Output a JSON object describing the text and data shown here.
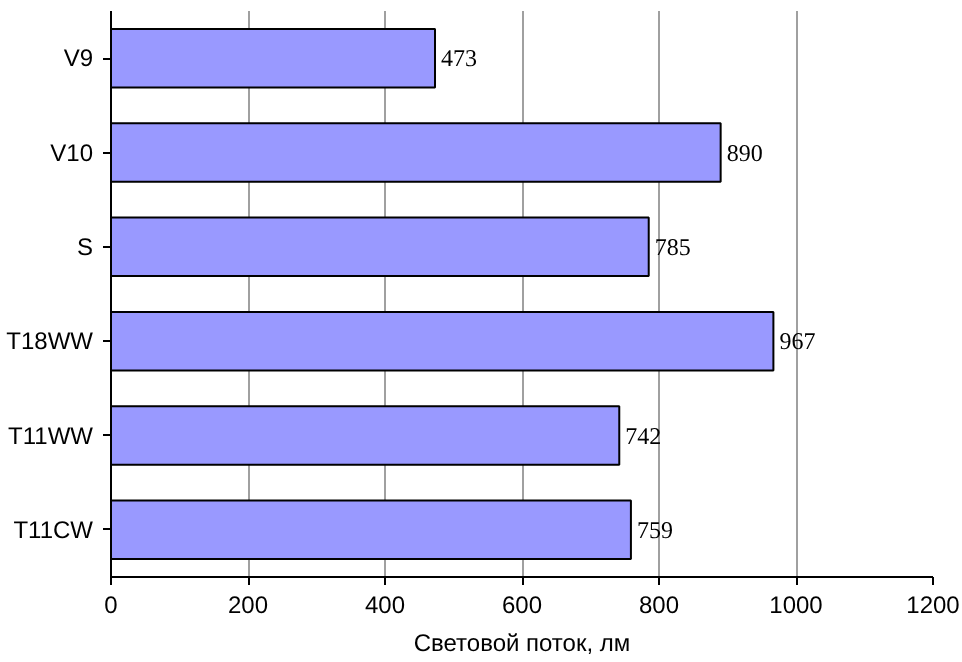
{
  "chart_data": {
    "type": "bar",
    "orientation": "horizontal",
    "xlabel": "Световой поток, лм",
    "categories": [
      "V9",
      "V10",
      "S",
      "T18WW",
      "T11WW",
      "T11CW"
    ],
    "values": [
      473,
      890,
      785,
      967,
      742,
      759
    ],
    "color": "#9999ff",
    "data_labels": true,
    "grid": "x",
    "xlim": [
      0,
      1200
    ],
    "xticks": [
      0,
      200,
      400,
      600,
      800,
      1000,
      1200
    ]
  }
}
